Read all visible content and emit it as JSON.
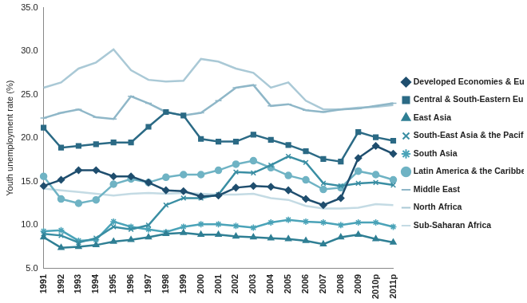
{
  "chart_data": {
    "type": "line",
    "y_label": "Youth unemployment rate (%)",
    "categories": [
      "1991",
      "1992",
      "1993",
      "1994",
      "1995",
      "1996",
      "1997",
      "1998",
      "1999",
      "2000",
      "2001",
      "2002",
      "2003",
      "2004",
      "2005",
      "2006",
      "2007",
      "2008",
      "2009",
      "2010p",
      "2011p"
    ],
    "ylim": [
      5,
      35
    ],
    "yticks": [
      {
        "value": 5,
        "label": "5.0"
      },
      {
        "value": 10,
        "label": "10.0"
      },
      {
        "value": 15,
        "label": "15.0"
      },
      {
        "value": 20,
        "label": "20.0"
      },
      {
        "value": 25,
        "label": "25.0"
      },
      {
        "value": 30,
        "label": "30.0"
      },
      {
        "value": 35,
        "label": "35.0"
      }
    ],
    "grid": false,
    "legend": "right",
    "series": [
      {
        "name": "Developed Economies & European Union",
        "color": "#1f4e6e",
        "marker": "diamond",
        "values": [
          14.5,
          15.2,
          16.3,
          16.3,
          15.6,
          15.6,
          14.9,
          14.0,
          13.9,
          13.3,
          13.4,
          14.3,
          14.5,
          14.4,
          14.0,
          13.0,
          12.3,
          13.1,
          17.7,
          19.1,
          18.2
        ]
      },
      {
        "name": "Central & South-Eastern Europe (non-EU) & CIS",
        "color": "#2b6a85",
        "marker": "square",
        "values": [
          21.2,
          18.9,
          19.1,
          19.3,
          19.5,
          19.5,
          21.3,
          23.0,
          22.6,
          19.9,
          19.6,
          19.6,
          20.4,
          19.8,
          19.2,
          18.5,
          17.6,
          17.3,
          20.7,
          20.1,
          19.7
        ]
      },
      {
        "name": "East Asia",
        "color": "#2f7f94",
        "marker": "triangle",
        "values": [
          8.6,
          7.4,
          7.5,
          7.7,
          8.1,
          8.3,
          8.6,
          9.0,
          9.1,
          8.9,
          8.9,
          8.7,
          8.6,
          8.5,
          8.4,
          8.2,
          7.8,
          8.6,
          8.9,
          8.4,
          8.0
        ]
      },
      {
        "name": "South-East Asia & the Pacific",
        "color": "#3a8ea3",
        "marker": "x",
        "values": [
          9.0,
          8.8,
          8.0,
          8.5,
          9.8,
          9.5,
          10.0,
          12.3,
          13.1,
          13.1,
          13.5,
          16.1,
          16.0,
          16.9,
          17.9,
          17.2,
          14.8,
          14.5,
          14.8,
          14.9,
          14.6
        ]
      },
      {
        "name": "South Asia",
        "color": "#4aa3b8",
        "marker": "star",
        "values": [
          9.3,
          9.4,
          8.2,
          8.3,
          10.4,
          9.8,
          9.5,
          9.2,
          9.8,
          10.1,
          10.1,
          9.9,
          9.7,
          10.3,
          10.6,
          10.4,
          10.3,
          10.0,
          10.3,
          10.3,
          9.8
        ]
      },
      {
        "name": "Latin America & the Caribbean",
        "color": "#6fb3c4",
        "marker": "circle",
        "values": [
          15.6,
          13.0,
          12.5,
          12.9,
          14.7,
          15.3,
          14.9,
          15.5,
          15.8,
          15.8,
          16.3,
          17.0,
          17.4,
          16.6,
          15.7,
          15.2,
          14.1,
          14.3,
          16.2,
          15.8,
          15.2
        ]
      },
      {
        "name": "Middle East",
        "color": "#8fb7c8",
        "marker": "dash",
        "values": [
          22.3,
          22.9,
          23.3,
          22.4,
          22.2,
          24.8,
          24.0,
          23.0,
          22.6,
          22.9,
          24.3,
          25.8,
          26.1,
          23.7,
          23.9,
          23.2,
          23.0,
          23.3,
          23.4,
          23.7,
          24.0
        ]
      },
      {
        "name": "North Africa",
        "color": "#aac9d6",
        "marker": "none",
        "values": [
          25.8,
          26.4,
          28.0,
          28.7,
          30.2,
          27.8,
          26.7,
          26.5,
          26.6,
          29.1,
          28.8,
          28.0,
          27.5,
          25.8,
          26.4,
          24.3,
          23.3,
          23.3,
          23.5,
          23.6,
          23.8
        ]
      },
      {
        "name": "Sub-Saharan Africa",
        "color": "#c4dbe4",
        "marker": "none",
        "values": [
          14.2,
          14.0,
          13.8,
          13.6,
          13.4,
          13.6,
          13.7,
          13.6,
          13.7,
          13.6,
          13.5,
          13.5,
          13.6,
          13.1,
          12.9,
          12.2,
          11.9,
          11.9,
          12.0,
          12.4,
          12.3
        ]
      }
    ]
  }
}
